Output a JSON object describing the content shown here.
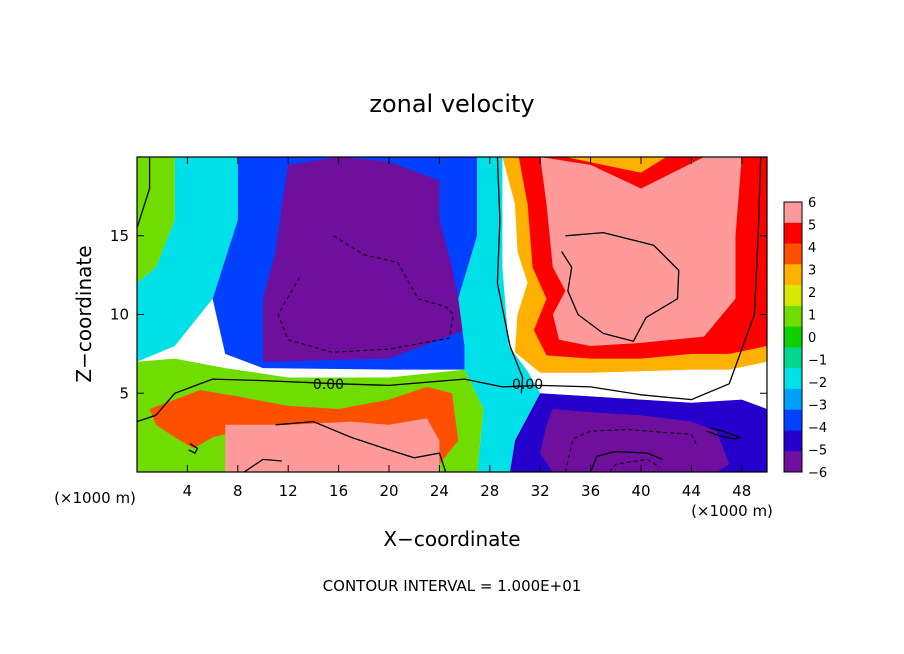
{
  "chart_data": {
    "type": "heatmap",
    "title": "zonal velocity",
    "xlabel": "X−coordinate",
    "ylabel": "Z−coordinate",
    "x_unit_left": "(×1000 m)",
    "x_unit_right": "(×1000 m)",
    "footer": "CONTOUR INTERVAL = 1.000E+01",
    "xlim": [
      0,
      50
    ],
    "ylim": [
      0,
      20
    ],
    "x_ticks": [
      4,
      8,
      12,
      16,
      20,
      24,
      28,
      32,
      36,
      40,
      44,
      48
    ],
    "y_ticks": [
      5,
      10,
      15
    ],
    "x_tick_labels": [
      "4",
      "8",
      "12",
      "16",
      "20",
      "24",
      "28",
      "32",
      "36",
      "40",
      "44",
      "48"
    ],
    "y_tick_labels": [
      "5",
      "10",
      "15"
    ],
    "contour_labels": [
      {
        "text": "0.00",
        "x": 15.2,
        "z": 5.6
      },
      {
        "text": "0.00",
        "x": 31.0,
        "z": 5.6
      }
    ],
    "colorbar": {
      "min": -6,
      "max": 6,
      "tick_labels": [
        "6",
        "5",
        "4",
        "3",
        "2",
        "1",
        "0",
        "−1",
        "−2",
        "−3",
        "−4",
        "−5",
        "−6"
      ],
      "colors": [
        "#6f0f9e",
        "#2500cc",
        "#0040ff",
        "#00a0ff",
        "#00e0e8",
        "#00d890",
        "#10d000",
        "#70dc00",
        "#d8e800",
        "#ffb000",
        "#ff5000",
        "#ff0000",
        "#ff9a9a"
      ]
    },
    "regions": [
      {
        "name": "left-jet",
        "value": 1.2,
        "points": [
          [
            0,
            20
          ],
          [
            3,
            20
          ],
          [
            3,
            16
          ],
          [
            1.5,
            13
          ],
          [
            0,
            12
          ]
        ]
      },
      {
        "name": "left-transition",
        "value": -1.8,
        "points": [
          [
            3,
            20
          ],
          [
            8,
            20
          ],
          [
            8,
            16
          ],
          [
            6,
            11
          ],
          [
            3,
            8
          ],
          [
            0,
            7
          ],
          [
            0,
            12
          ],
          [
            1.5,
            13
          ],
          [
            3,
            16
          ]
        ]
      },
      {
        "name": "upper-negative-band",
        "value": -4.5,
        "points": [
          [
            8,
            20
          ],
          [
            27,
            20
          ],
          [
            27,
            15
          ],
          [
            25.5,
            11
          ],
          [
            26,
            8
          ],
          [
            26,
            6.5
          ],
          [
            20,
            6.5
          ],
          [
            10,
            6.6
          ],
          [
            7,
            7.5
          ],
          [
            6,
            11
          ],
          [
            8,
            16
          ]
        ]
      },
      {
        "name": "upper-core",
        "value": -6.5,
        "points": [
          [
            12,
            19.5
          ],
          [
            16,
            20
          ],
          [
            20,
            19.7
          ],
          [
            24,
            18.5
          ],
          [
            24,
            16
          ],
          [
            25,
            13
          ],
          [
            26,
            9
          ],
          [
            20,
            7.2
          ],
          [
            10,
            7
          ],
          [
            10,
            11
          ],
          [
            11,
            14
          ],
          [
            11.5,
            17
          ]
        ]
      },
      {
        "name": "middle-channel",
        "value": -2.2,
        "points": [
          [
            27,
            20
          ],
          [
            29,
            20
          ],
          [
            29,
            13
          ],
          [
            29.5,
            8
          ],
          [
            31,
            6.4
          ],
          [
            32,
            5
          ],
          [
            30,
            2
          ],
          [
            29.6,
            0
          ],
          [
            27,
            0
          ],
          [
            27.5,
            4
          ],
          [
            26,
            6.5
          ],
          [
            26,
            8
          ],
          [
            25.5,
            11
          ],
          [
            27,
            15
          ]
        ]
      },
      {
        "name": "lower-left-transition",
        "value": 0.6,
        "points": [
          [
            0,
            7
          ],
          [
            3,
            7.2
          ],
          [
            7,
            6.6
          ],
          [
            12,
            6
          ],
          [
            20,
            6
          ],
          [
            26,
            6.5
          ],
          [
            27.5,
            4
          ],
          [
            27,
            0
          ],
          [
            0,
            0
          ]
        ]
      },
      {
        "name": "lower-left-jet",
        "value": 4.2,
        "points": [
          [
            1,
            4
          ],
          [
            3,
            4.6
          ],
          [
            5,
            5.2
          ],
          [
            8,
            4.8
          ],
          [
            12,
            4.2
          ],
          [
            16,
            4
          ],
          [
            20,
            4.6
          ],
          [
            23,
            5.4
          ],
          [
            25,
            5
          ],
          [
            25.5,
            2
          ],
          [
            24,
            0.5
          ],
          [
            20,
            1.5
          ],
          [
            16,
            2
          ],
          [
            12,
            2.5
          ],
          [
            8,
            2.6
          ],
          [
            6,
            2.2
          ],
          [
            4.5,
            1.5
          ],
          [
            3,
            2.2
          ],
          [
            1.5,
            3
          ]
        ]
      },
      {
        "name": "lower-left-core",
        "value": 6.5,
        "points": [
          [
            7,
            3
          ],
          [
            12,
            3
          ],
          [
            17,
            3.2
          ],
          [
            20,
            3
          ],
          [
            23,
            3.4
          ],
          [
            24,
            2
          ],
          [
            24,
            0
          ],
          [
            7,
            0
          ]
        ]
      },
      {
        "name": "upper-right-warm",
        "value": 2.8,
        "points": [
          [
            29,
            20
          ],
          [
            40,
            20
          ],
          [
            44,
            20
          ],
          [
            50,
            20
          ],
          [
            50,
            7
          ],
          [
            47,
            6.5
          ],
          [
            44,
            6.5
          ],
          [
            40,
            6.4
          ],
          [
            36,
            6.3
          ],
          [
            32,
            6.3
          ],
          [
            30,
            7.6
          ],
          [
            30.2,
            10
          ],
          [
            31,
            12
          ],
          [
            30.2,
            14
          ],
          [
            30,
            17
          ]
        ]
      },
      {
        "name": "upper-right-jet",
        "value": 4.8,
        "points": [
          [
            30.3,
            20
          ],
          [
            34,
            20
          ],
          [
            40,
            19
          ],
          [
            42,
            20
          ],
          [
            50,
            20
          ],
          [
            50,
            8
          ],
          [
            47,
            7.5
          ],
          [
            44,
            7.5
          ],
          [
            40,
            7.2
          ],
          [
            36,
            7.2
          ],
          [
            32.5,
            7.4
          ],
          [
            31.5,
            9
          ],
          [
            32.5,
            11
          ],
          [
            31.4,
            13
          ],
          [
            31,
            17
          ]
        ]
      },
      {
        "name": "upper-right-core",
        "value": 6.5,
        "points": [
          [
            32,
            20
          ],
          [
            36,
            19.5
          ],
          [
            40,
            18
          ],
          [
            42.5,
            19
          ],
          [
            45,
            20
          ],
          [
            48,
            20
          ],
          [
            47.5,
            15
          ],
          [
            47.5,
            11
          ],
          [
            45,
            8.6
          ],
          [
            40,
            8.2
          ],
          [
            36,
            8
          ],
          [
            33.5,
            8.4
          ],
          [
            33,
            10
          ],
          [
            34,
            11.5
          ],
          [
            33,
            13
          ],
          [
            32.5,
            17
          ]
        ]
      },
      {
        "name": "lower-right-negative",
        "value": -4.8,
        "points": [
          [
            32,
            5
          ],
          [
            36,
            4.8
          ],
          [
            40,
            4.6
          ],
          [
            44,
            4.4
          ],
          [
            48,
            4.6
          ],
          [
            50,
            4
          ],
          [
            50,
            0
          ],
          [
            29.6,
            0
          ],
          [
            30,
            2
          ]
        ]
      },
      {
        "name": "lower-right-core",
        "value": -6.5,
        "points": [
          [
            33,
            4
          ],
          [
            36,
            3.8
          ],
          [
            40,
            3.6
          ],
          [
            44,
            3.2
          ],
          [
            46,
            2.6
          ],
          [
            47,
            0.5
          ],
          [
            46,
            0
          ],
          [
            33,
            0
          ],
          [
            32,
            1.2
          ],
          [
            32.5,
            3
          ]
        ]
      }
    ],
    "contours": [
      {
        "style": "solid",
        "points": [
          [
            1,
            20
          ],
          [
            1,
            18
          ],
          [
            0,
            15.5
          ]
        ]
      },
      {
        "style": "solid",
        "points": [
          [
            0,
            3.2
          ],
          [
            1.5,
            3.6
          ],
          [
            3,
            5
          ],
          [
            6,
            5.9
          ],
          [
            10,
            5.8
          ],
          [
            16,
            5.6
          ],
          [
            20,
            5.5
          ],
          [
            26,
            5.9
          ],
          [
            29,
            5.4
          ],
          [
            32,
            5.5
          ],
          [
            36,
            5.4
          ],
          [
            40,
            4.9
          ],
          [
            44,
            4.6
          ],
          [
            47,
            5.6
          ],
          [
            49,
            10
          ],
          [
            49.3,
            15
          ],
          [
            49.5,
            20
          ]
        ]
      },
      {
        "style": "solid",
        "points": [
          [
            28.6,
            20
          ],
          [
            28.8,
            16
          ],
          [
            28.6,
            12
          ],
          [
            29.6,
            8
          ],
          [
            30.6,
            6
          ],
          [
            30.5,
            5
          ]
        ]
      },
      {
        "style": "dashed",
        "points": [
          [
            15.6,
            15
          ],
          [
            18,
            13.8
          ],
          [
            20.7,
            13.3
          ],
          [
            22.3,
            11
          ],
          [
            24.5,
            10.5
          ],
          [
            25.1,
            10
          ],
          [
            24.8,
            8.5
          ],
          [
            20,
            7.8
          ],
          [
            15.5,
            7.6
          ],
          [
            12,
            8.4
          ],
          [
            11.2,
            10
          ],
          [
            13,
            12.5
          ]
        ]
      },
      {
        "style": "solid",
        "points": [
          [
            34,
            15
          ],
          [
            37,
            15.2
          ],
          [
            41,
            14.4
          ],
          [
            43,
            12.8
          ],
          [
            42.9,
            11
          ],
          [
            40.4,
            9.8
          ],
          [
            39.4,
            8.3
          ],
          [
            37,
            8.8
          ],
          [
            35,
            10
          ],
          [
            34.2,
            11.5
          ],
          [
            34.5,
            13
          ],
          [
            33.7,
            14
          ]
        ]
      },
      {
        "style": "dashed",
        "points": [
          [
            34,
            0
          ],
          [
            34.6,
            2.1
          ],
          [
            36,
            2.6
          ],
          [
            39,
            2.7
          ],
          [
            42,
            2.5
          ],
          [
            44,
            2.4
          ],
          [
            44.5,
            1.6
          ]
        ]
      },
      {
        "style": "dashed",
        "points": [
          [
            37.5,
            0
          ],
          [
            38,
            0.5
          ],
          [
            40.5,
            0.8
          ],
          [
            41.5,
            0.3
          ]
        ]
      },
      {
        "style": "solid",
        "points": [
          [
            11,
            3
          ],
          [
            14,
            3.2
          ],
          [
            17,
            2.2
          ],
          [
            20,
            1.4
          ],
          [
            22,
            0.9
          ],
          [
            24,
            1.2
          ],
          [
            24.5,
            0
          ]
        ]
      },
      {
        "style": "solid",
        "points": [
          [
            8.5,
            0
          ],
          [
            10,
            0.8
          ],
          [
            11.5,
            0.7
          ]
        ]
      },
      {
        "style": "solid",
        "points": [
          [
            4.2,
            1.8
          ],
          [
            4.8,
            1.5
          ],
          [
            4.6,
            1.2
          ],
          [
            4.1,
            1.4
          ]
        ]
      },
      {
        "style": "solid",
        "points": [
          [
            45.5,
            2.8
          ],
          [
            46.5,
            2.6
          ],
          [
            47.8,
            2.2
          ],
          [
            47.4,
            2.1
          ],
          [
            46.2,
            2.3
          ],
          [
            45.2,
            2.6
          ]
        ]
      },
      {
        "style": "solid",
        "points": [
          [
            36,
            0
          ],
          [
            36.5,
            1
          ],
          [
            38,
            1.3
          ],
          [
            40.5,
            1.2
          ],
          [
            41.7,
            0.8
          ]
        ]
      }
    ]
  }
}
